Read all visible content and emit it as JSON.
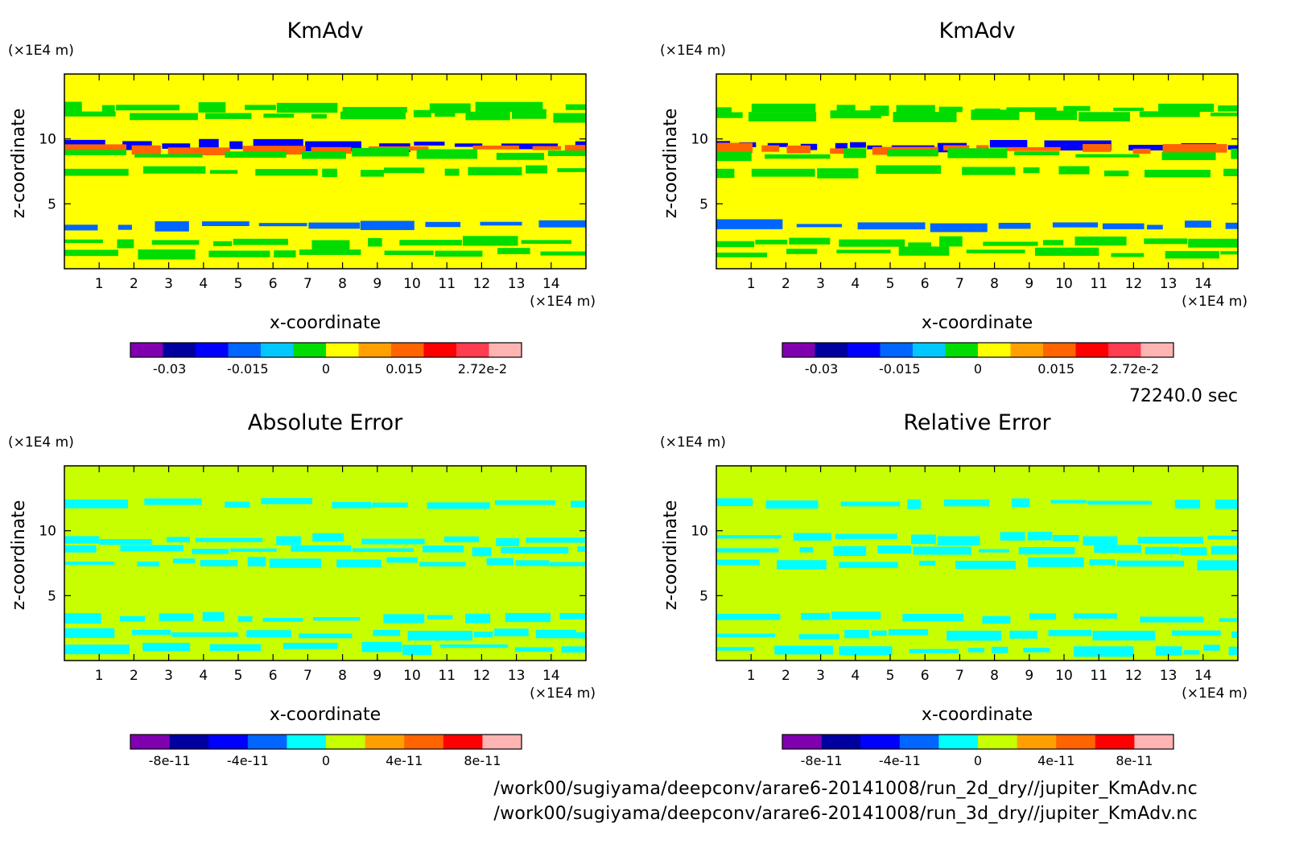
{
  "time_label": "72240.0 sec",
  "footer": {
    "line1": "/work00/sugiyama/deepconv/arare6-20141008/run_2d_dry//jupiter_KmAdv.nc",
    "line2": "/work00/sugiyama/deepconv/arare6-20141008/run_3d_dry//jupiter_KmAdv.nc"
  },
  "chart_data": [
    {
      "type": "heatmap",
      "title": "KmAdv",
      "xlabel": "x-coordinate",
      "ylabel": "z-coordinate",
      "x_unit": "(×1E4 m)",
      "y_unit": "(×1E4 m)",
      "xlim": [
        0,
        15
      ],
      "ylim": [
        0,
        15
      ],
      "x_ticks": [
        "1",
        "2",
        "3",
        "4",
        "5",
        "6",
        "7",
        "8",
        "9",
        "10",
        "11",
        "12",
        "13",
        "14"
      ],
      "y_ticks": [
        "5",
        "10"
      ],
      "colorbar": {
        "colors": [
          "#8000b0",
          "#0000a0",
          "#0000ff",
          "#0066ff",
          "#00c8ff",
          "#00dc00",
          "#ffff00",
          "#ffa000",
          "#ff6400",
          "#ff0000",
          "#ff3c50",
          "#ffb4b4"
        ],
        "tick_labels": [
          "-0.03",
          "-0.015",
          "0",
          "0.015",
          "2.72e-2"
        ]
      },
      "background_color": "#ffff00",
      "bands": [
        {
          "z": 12.3,
          "color": "#00dc00"
        },
        {
          "z": 11.8,
          "color": "#00dc00"
        },
        {
          "z": 9.5,
          "color": "#0000ff"
        },
        {
          "z": 9.2,
          "color": "#ff6400"
        },
        {
          "z": 8.8,
          "color": "#00dc00"
        },
        {
          "z": 7.5,
          "color": "#00dc00"
        },
        {
          "z": 3.3,
          "color": "#0066ff"
        },
        {
          "z": 2.0,
          "color": "#00dc00"
        },
        {
          "z": 1.2,
          "color": "#00dc00"
        }
      ]
    },
    {
      "type": "heatmap",
      "title": "KmAdv",
      "xlabel": "x-coordinate",
      "ylabel": "z-coordinate",
      "x_unit": "(×1E4 m)",
      "y_unit": "(×1E4 m)",
      "xlim": [
        0,
        15
      ],
      "ylim": [
        0,
        15
      ],
      "x_ticks": [
        "1",
        "2",
        "3",
        "4",
        "5",
        "6",
        "7",
        "8",
        "9",
        "10",
        "11",
        "12",
        "13",
        "14"
      ],
      "y_ticks": [
        "5",
        "10"
      ],
      "colorbar": {
        "colors": [
          "#8000b0",
          "#0000a0",
          "#0000ff",
          "#0066ff",
          "#00c8ff",
          "#00dc00",
          "#ffff00",
          "#ffa000",
          "#ff6400",
          "#ff0000",
          "#ff3c50",
          "#ffb4b4"
        ],
        "tick_labels": [
          "-0.03",
          "-0.015",
          "0",
          "0.015",
          "2.72e-2"
        ]
      },
      "background_color": "#ffff00",
      "bands": [
        {
          "z": 12.3,
          "color": "#00dc00"
        },
        {
          "z": 11.8,
          "color": "#00dc00"
        },
        {
          "z": 9.5,
          "color": "#0000ff"
        },
        {
          "z": 9.2,
          "color": "#ff6400"
        },
        {
          "z": 8.8,
          "color": "#00dc00"
        },
        {
          "z": 7.5,
          "color": "#00dc00"
        },
        {
          "z": 3.3,
          "color": "#0066ff"
        },
        {
          "z": 2.0,
          "color": "#00dc00"
        },
        {
          "z": 1.2,
          "color": "#00dc00"
        }
      ]
    },
    {
      "type": "heatmap",
      "title": "Absolute Error",
      "xlabel": "x-coordinate",
      "ylabel": "z-coordinate",
      "x_unit": "(×1E4 m)",
      "y_unit": "(×1E4 m)",
      "xlim": [
        0,
        15
      ],
      "ylim": [
        0,
        15
      ],
      "x_ticks": [
        "1",
        "2",
        "3",
        "4",
        "5",
        "6",
        "7",
        "8",
        "9",
        "10",
        "11",
        "12",
        "13",
        "14"
      ],
      "y_ticks": [
        "5",
        "10"
      ],
      "colorbar": {
        "colors": [
          "#8000b0",
          "#0000a0",
          "#0000ff",
          "#0066ff",
          "#00ffff",
          "#c8ff00",
          "#ffa000",
          "#ff6400",
          "#ff0000",
          "#ffb4b4"
        ],
        "tick_labels": [
          "-8e-11",
          "-4e-11",
          "0",
          "4e-11",
          "8e-11"
        ]
      },
      "background_color": "#c8ff00",
      "bands": [
        {
          "z": 12.1,
          "color": "#00ffff"
        },
        {
          "z": 9.3,
          "color": "#00ffff"
        },
        {
          "z": 8.5,
          "color": "#00ffff"
        },
        {
          "z": 7.6,
          "color": "#00ffff"
        },
        {
          "z": 3.3,
          "color": "#00ffff"
        },
        {
          "z": 2.0,
          "color": "#00ffff"
        },
        {
          "z": 1.0,
          "color": "#00ffff"
        }
      ]
    },
    {
      "type": "heatmap",
      "title": "Relative Error",
      "xlabel": "x-coordinate",
      "ylabel": "z-coordinate",
      "x_unit": "(×1E4 m)",
      "y_unit": "(×1E4 m)",
      "xlim": [
        0,
        15
      ],
      "ylim": [
        0,
        15
      ],
      "x_ticks": [
        "1",
        "2",
        "3",
        "4",
        "5",
        "6",
        "7",
        "8",
        "9",
        "10",
        "11",
        "12",
        "13",
        "14"
      ],
      "y_ticks": [
        "5",
        "10"
      ],
      "colorbar": {
        "colors": [
          "#8000b0",
          "#0000a0",
          "#0000ff",
          "#0066ff",
          "#00ffff",
          "#c8ff00",
          "#ffa000",
          "#ff6400",
          "#ff0000",
          "#ffb4b4"
        ],
        "tick_labels": [
          "-8e-11",
          "-4e-11",
          "0",
          "4e-11",
          "8e-11"
        ]
      },
      "background_color": "#c8ff00",
      "bands": [
        {
          "z": 12.2,
          "color": "#00ffff"
        },
        {
          "z": 9.4,
          "color": "#00ffff"
        },
        {
          "z": 8.6,
          "color": "#00ffff"
        },
        {
          "z": 7.5,
          "color": "#00ffff"
        },
        {
          "z": 3.3,
          "color": "#00ffff"
        },
        {
          "z": 2.0,
          "color": "#00ffff"
        },
        {
          "z": 0.8,
          "color": "#00ffff"
        }
      ]
    }
  ]
}
